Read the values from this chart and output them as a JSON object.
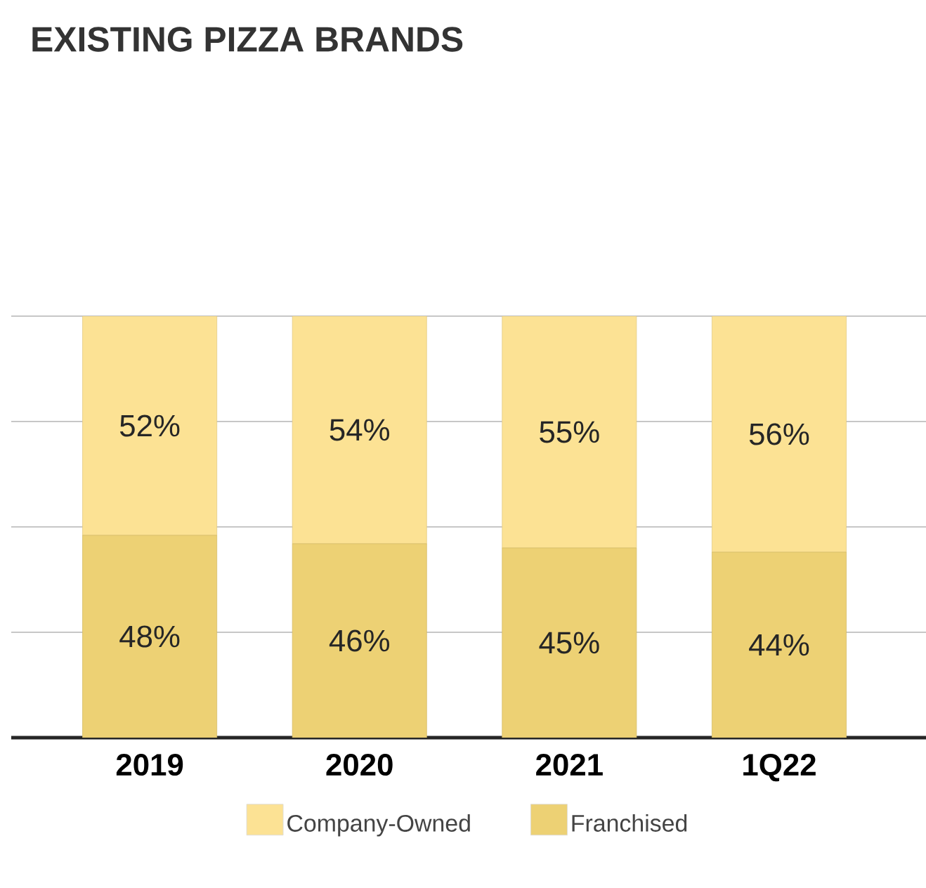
{
  "chart_data": {
    "type": "bar",
    "title": "EXISTING PIZZA BRANDS",
    "stacked": true,
    "categories": [
      "2019",
      "2020",
      "2021",
      "1Q22"
    ],
    "series": [
      {
        "name": "Franchised",
        "color": "#edd174",
        "values": [
          48,
          46,
          45,
          44
        ],
        "value_labels": [
          "48%",
          "46%",
          "45%",
          "44%"
        ]
      },
      {
        "name": "Company-Owned",
        "color": "#fce294",
        "values": [
          52,
          54,
          55,
          56
        ],
        "value_labels": [
          "52%",
          "54%",
          "55%",
          "56%"
        ]
      }
    ],
    "ylim": [
      0,
      100
    ],
    "yticks": [
      {
        "value": 0,
        "label": null
      },
      {
        "value": 25,
        "label": null
      },
      {
        "value": 50,
        "label": null
      },
      {
        "value": 75,
        "label": null
      },
      {
        "value": 100,
        "label": null
      }
    ],
    "tick_labels": "x",
    "grid": "y",
    "legend": "bottom"
  }
}
